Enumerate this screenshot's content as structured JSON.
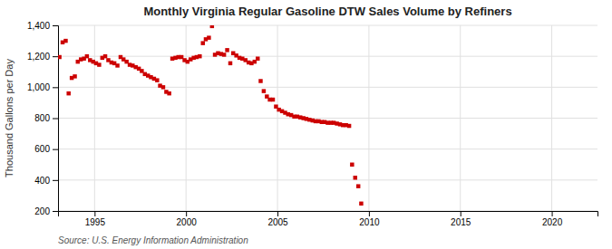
{
  "chart_data": {
    "type": "scatter",
    "title": "Monthly Virginia Regular Gasoline DTW Sales Volume by Refiners",
    "ylabel": "Thousand Gallons per Day",
    "source": "Source: U.S. Energy Information Administration",
    "color": "#cc0000",
    "marker": "square",
    "grid": true,
    "xlim": [
      1993.0,
      2022.5
    ],
    "ylim": [
      200,
      1400
    ],
    "xticks": [
      1995,
      2000,
      2005,
      2010,
      2015,
      2020
    ],
    "yticks": [
      200,
      400,
      600,
      800,
      {
        "value": 1000,
        "label": "1,000"
      },
      {
        "value": 1200,
        "label": "1,200"
      },
      {
        "value": 1400,
        "label": "1,400"
      }
    ],
    "x": [
      1993.08,
      1993.25,
      1993.42,
      1993.58,
      1993.75,
      1993.92,
      1994.08,
      1994.25,
      1994.42,
      1994.58,
      1994.75,
      1994.92,
      1995.08,
      1995.25,
      1995.42,
      1995.58,
      1995.75,
      1995.92,
      1996.08,
      1996.25,
      1996.42,
      1996.58,
      1996.75,
      1996.92,
      1997.08,
      1997.25,
      1997.42,
      1997.58,
      1997.75,
      1997.92,
      1998.08,
      1998.25,
      1998.42,
      1998.58,
      1998.75,
      1998.92,
      1999.08,
      1999.25,
      1999.42,
      1999.58,
      1999.75,
      1999.92,
      2000.08,
      2000.25,
      2000.42,
      2000.58,
      2000.75,
      2000.92,
      2001.08,
      2001.25,
      2001.42,
      2001.58,
      2001.75,
      2001.92,
      2002.08,
      2002.25,
      2002.42,
      2002.58,
      2002.75,
      2002.92,
      2003.08,
      2003.25,
      2003.42,
      2003.58,
      2003.75,
      2003.92,
      2004.08,
      2004.25,
      2004.42,
      2004.58,
      2004.75,
      2004.92,
      2005.08,
      2005.25,
      2005.42,
      2005.58,
      2005.75,
      2005.92,
      2006.08,
      2006.25,
      2006.42,
      2006.58,
      2006.75,
      2006.92,
      2007.08,
      2007.25,
      2007.42,
      2007.58,
      2007.75,
      2007.92,
      2008.08,
      2008.25,
      2008.42,
      2008.58,
      2008.75,
      2008.92,
      2009.08,
      2009.25,
      2009.42,
      2009.58
    ],
    "values": [
      1195,
      1290,
      1300,
      960,
      1060,
      1070,
      1165,
      1180,
      1185,
      1200,
      1175,
      1165,
      1155,
      1145,
      1190,
      1200,
      1175,
      1160,
      1155,
      1140,
      1195,
      1180,
      1165,
      1145,
      1140,
      1130,
      1120,
      1105,
      1085,
      1075,
      1065,
      1055,
      1045,
      1010,
      1000,
      970,
      960,
      1185,
      1190,
      1195,
      1195,
      1175,
      1165,
      1180,
      1190,
      1195,
      1200,
      1285,
      1310,
      1320,
      1395,
      1210,
      1220,
      1215,
      1210,
      1240,
      1155,
      1220,
      1205,
      1190,
      1185,
      1175,
      1160,
      1155,
      1165,
      1185,
      1040,
      975,
      940,
      920,
      920,
      875,
      855,
      845,
      835,
      825,
      820,
      810,
      810,
      805,
      800,
      795,
      790,
      785,
      780,
      780,
      775,
      775,
      770,
      770,
      770,
      765,
      760,
      755,
      755,
      750,
      500,
      415,
      360,
      248
    ]
  }
}
